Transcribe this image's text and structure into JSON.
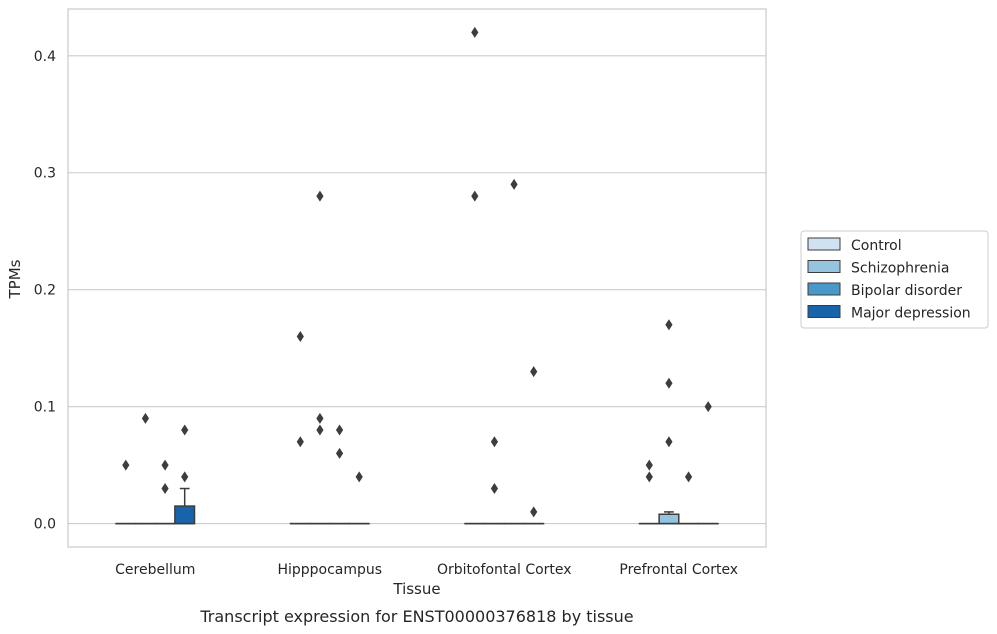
{
  "chart_data": {
    "type": "boxplot",
    "xlabel": "Tissue",
    "ylabel": "TPMs",
    "caption": "Transcript expression for ENST00000376818 by tissue",
    "categories": [
      "Cerebellum",
      "Hipppocampus",
      "Orbitofontal Cortex",
      "Prefrontal Cortex"
    ],
    "ylim": [
      -0.02,
      0.44
    ],
    "yticks": [
      0.0,
      0.1,
      0.2,
      0.3,
      0.4
    ],
    "ytick_labels": [
      "0.0",
      "0.1",
      "0.2",
      "0.3",
      "0.4"
    ],
    "grid": "horizontal",
    "legend_position": "right",
    "series": [
      {
        "name": "Control",
        "color": "#d0e1f2",
        "boxes": [
          {
            "q1": 0,
            "median": 0,
            "q3": 0,
            "whisker_low": 0,
            "whisker_high": 0,
            "outliers": [
              0.05
            ]
          },
          {
            "q1": 0,
            "median": 0,
            "q3": 0,
            "whisker_low": 0,
            "whisker_high": 0,
            "outliers": [
              0.07,
              0.16
            ]
          },
          {
            "q1": 0,
            "median": 0,
            "q3": 0,
            "whisker_low": 0,
            "whisker_high": 0,
            "outliers": [
              0.28,
              0.42
            ]
          },
          {
            "q1": 0,
            "median": 0,
            "q3": 0,
            "whisker_low": 0,
            "whisker_high": 0,
            "outliers": [
              0.04,
              0.05
            ]
          }
        ]
      },
      {
        "name": "Schizophrenia",
        "color": "#94c4df",
        "boxes": [
          {
            "q1": 0,
            "median": 0,
            "q3": 0,
            "whisker_low": 0,
            "whisker_high": 0,
            "outliers": [
              0.09
            ]
          },
          {
            "q1": 0,
            "median": 0,
            "q3": 0,
            "whisker_low": 0,
            "whisker_high": 0,
            "outliers": [
              0.08,
              0.09,
              0.28
            ]
          },
          {
            "q1": 0,
            "median": 0,
            "q3": 0,
            "whisker_low": 0,
            "whisker_high": 0,
            "outliers": [
              0.03,
              0.07
            ]
          },
          {
            "q1": 0,
            "median": 0,
            "q3": 0.008,
            "whisker_low": 0,
            "whisker_high": 0.01,
            "outliers": [
              0.07,
              0.12,
              0.17
            ]
          }
        ]
      },
      {
        "name": "Bipolar disorder",
        "color": "#4a98c9",
        "boxes": [
          {
            "q1": 0,
            "median": 0,
            "q3": 0,
            "whisker_low": 0,
            "whisker_high": 0,
            "outliers": [
              0.03,
              0.05
            ]
          },
          {
            "q1": 0,
            "median": 0,
            "q3": 0,
            "whisker_low": 0,
            "whisker_high": 0,
            "outliers": [
              0.06,
              0.08
            ]
          },
          {
            "q1": 0,
            "median": 0,
            "q3": 0,
            "whisker_low": 0,
            "whisker_high": 0,
            "outliers": [
              0.29
            ]
          },
          {
            "q1": 0,
            "median": 0,
            "q3": 0,
            "whisker_low": 0,
            "whisker_high": 0,
            "outliers": [
              0.04
            ]
          }
        ]
      },
      {
        "name": "Major depression",
        "color": "#1764ab",
        "boxes": [
          {
            "q1": 0,
            "median": 0,
            "q3": 0.015,
            "whisker_low": 0,
            "whisker_high": 0.03,
            "outliers": [
              0.04,
              0.08
            ]
          },
          {
            "q1": 0,
            "median": 0,
            "q3": 0,
            "whisker_low": 0,
            "whisker_high": 0,
            "outliers": [
              0.04
            ]
          },
          {
            "q1": 0,
            "median": 0,
            "q3": 0,
            "whisker_low": 0,
            "whisker_high": 0,
            "outliers": [
              0.01,
              0.13
            ]
          },
          {
            "q1": 0,
            "median": 0,
            "q3": 0,
            "whisker_low": 0,
            "whisker_high": 0,
            "outliers": [
              0.1
            ]
          }
        ]
      }
    ]
  }
}
